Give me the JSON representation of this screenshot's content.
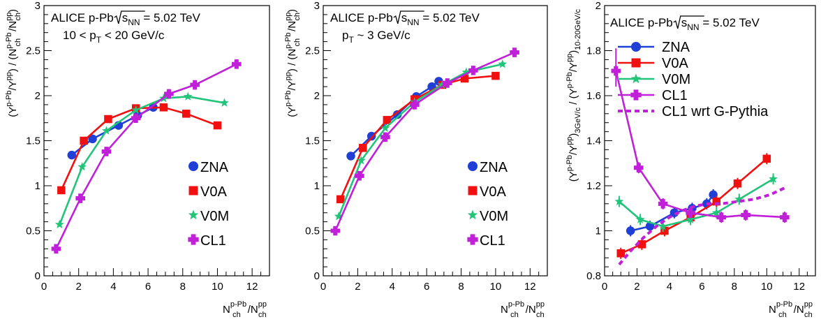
{
  "colors": {
    "ZNA": "#1f3fd6",
    "V0A": "#f01010",
    "V0M": "#22c47a",
    "CL1": "#c020d8",
    "axis": "#000000"
  },
  "chart_data": [
    {
      "type": "scatter",
      "panel": "left",
      "title": "",
      "annotation": [
        "ALICE p-Pb √sNN = 5.02 TeV",
        "10 < pT < 20 GeV/c"
      ],
      "xlabel": "N_ch^{p-Pb}/N_ch^{pp}",
      "ylabel": "(Y^{p-Pb}/Y^{pp}) / (N_ch^{p-Pb}/N_ch^{pp})",
      "xlim": [
        0,
        13
      ],
      "ylim": [
        0,
        3
      ],
      "xticks": [
        "0",
        "2",
        "4",
        "6",
        "8",
        "10",
        "12"
      ],
      "yticks": [
        "0",
        "0.5",
        "1",
        "1.5",
        "2",
        "2.5",
        "3"
      ],
      "legend_position": "bottom-right",
      "series": [
        {
          "name": "ZNA",
          "marker": "circle",
          "x": [
            1.6,
            2.8,
            4.3,
            5.4,
            6.3
          ],
          "y": [
            1.34,
            1.52,
            1.67,
            1.78,
            1.87
          ]
        },
        {
          "name": "V0A",
          "marker": "square",
          "x": [
            1.0,
            2.3,
            3.7,
            5.3,
            6.9,
            8.2,
            10.0
          ],
          "y": [
            0.95,
            1.5,
            1.74,
            1.86,
            1.87,
            1.8,
            1.67
          ]
        },
        {
          "name": "V0M",
          "marker": "star",
          "x": [
            0.9,
            2.2,
            3.6,
            5.3,
            6.9,
            8.3,
            10.4
          ],
          "y": [
            0.57,
            1.21,
            1.61,
            1.84,
            1.97,
            1.99,
            1.92
          ]
        },
        {
          "name": "CL1",
          "marker": "cross",
          "x": [
            0.7,
            2.1,
            3.6,
            5.3,
            7.2,
            8.7,
            11.1
          ],
          "y": [
            0.3,
            0.86,
            1.38,
            1.75,
            2.02,
            2.12,
            2.35
          ]
        }
      ]
    },
    {
      "type": "scatter",
      "panel": "middle",
      "title": "",
      "annotation": [
        "ALICE p-Pb √sNN = 5.02 TeV",
        "pT ~ 3 GeV/c"
      ],
      "xlabel": "N_ch^{p-Pb}/N_ch^{pp}",
      "ylabel": "(Y^{p-Pb}/Y^{pp}) / (N_ch^{p-Pb}/N_ch^{pp})",
      "xlim": [
        0,
        13
      ],
      "ylim": [
        0,
        3
      ],
      "xticks": [
        "0",
        "2",
        "4",
        "6",
        "8",
        "10",
        "12"
      ],
      "yticks": [
        "0",
        "0.5",
        "1",
        "1.5",
        "2",
        "2.5",
        "3"
      ],
      "legend_position": "bottom-right",
      "series": [
        {
          "name": "ZNA",
          "marker": "circle",
          "x": [
            1.6,
            2.8,
            4.3,
            5.4,
            6.3,
            6.7
          ],
          "y": [
            1.33,
            1.55,
            1.79,
            1.99,
            2.1,
            2.16
          ]
        },
        {
          "name": "V0A",
          "marker": "square",
          "x": [
            1.0,
            2.3,
            3.7,
            5.3,
            6.9,
            8.2,
            10.0
          ],
          "y": [
            0.85,
            1.42,
            1.73,
            1.96,
            2.12,
            2.19,
            2.22
          ]
        },
        {
          "name": "V0M",
          "marker": "star",
          "x": [
            0.9,
            2.2,
            3.6,
            5.3,
            6.9,
            8.3,
            10.4
          ],
          "y": [
            0.66,
            1.28,
            1.64,
            1.93,
            2.12,
            2.26,
            2.35
          ]
        },
        {
          "name": "CL1",
          "marker": "cross",
          "x": [
            0.7,
            2.1,
            3.6,
            5.3,
            7.2,
            8.7,
            11.1
          ],
          "y": [
            0.5,
            1.11,
            1.54,
            1.9,
            2.14,
            2.28,
            2.48
          ]
        }
      ]
    },
    {
      "type": "scatter",
      "panel": "right",
      "title": "",
      "annotation": [
        "ALICE p-Pb √sNN = 5.02 TeV"
      ],
      "xlabel": "N_ch^{p-Pb}/N_ch^{pp}",
      "ylabel": "(Y^{p-Pb}/Y^{pp})_{3GeV/c} / (Y^{p-Pb}/Y^{pp})_{10-20GeV/c}",
      "xlim": [
        0,
        13
      ],
      "ylim": [
        0.8,
        2.0
      ],
      "xticks": [
        "0",
        "2",
        "4",
        "6",
        "8",
        "10",
        "12"
      ],
      "yticks": [
        "0.8",
        "1",
        "1.2",
        "1.4",
        "1.6",
        "1.8",
        "2"
      ],
      "legend_position": "top-right",
      "series": [
        {
          "name": "ZNA",
          "marker": "circle",
          "x": [
            1.6,
            2.8,
            4.3,
            5.4,
            6.3,
            6.7
          ],
          "y": [
            1.0,
            1.02,
            1.08,
            1.1,
            1.12,
            1.16
          ]
        },
        {
          "name": "V0A",
          "marker": "square",
          "x": [
            1.0,
            2.3,
            3.7,
            5.3,
            6.9,
            8.2,
            10.0
          ],
          "y": [
            0.9,
            0.94,
            1.0,
            1.06,
            1.13,
            1.21,
            1.32
          ]
        },
        {
          "name": "V0M",
          "marker": "star",
          "x": [
            0.9,
            2.2,
            3.6,
            5.3,
            6.9,
            8.3,
            10.4
          ],
          "y": [
            1.13,
            1.05,
            1.02,
            1.05,
            1.08,
            1.14,
            1.23
          ]
        },
        {
          "name": "CL1",
          "marker": "cross",
          "x": [
            0.7,
            2.1,
            3.6,
            5.3,
            7.2,
            8.7,
            11.1
          ],
          "y": [
            1.71,
            1.28,
            1.12,
            1.08,
            1.06,
            1.07,
            1.06
          ]
        },
        {
          "name": "CL1 wrt G-Pythia",
          "marker": "dashed",
          "x": [
            0.9,
            1.6,
            2.4,
            3.2,
            4.0,
            4.8,
            5.6,
            6.4,
            7.2,
            8.2,
            9.2,
            10.2,
            11.1
          ],
          "y": [
            0.85,
            0.91,
            0.97,
            1.02,
            1.06,
            1.09,
            1.11,
            1.12,
            1.12,
            1.13,
            1.14,
            1.16,
            1.19
          ]
        }
      ]
    }
  ]
}
